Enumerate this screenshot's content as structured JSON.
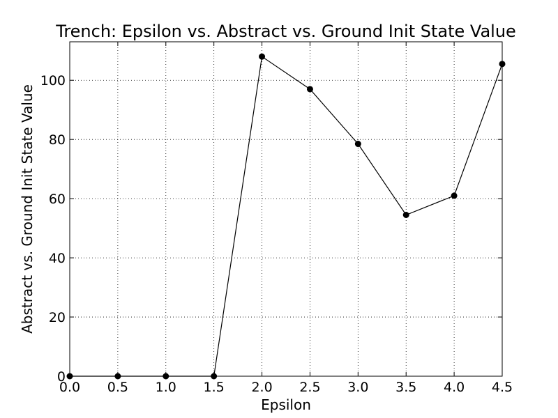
{
  "chart_data": {
    "type": "line",
    "title": "Trench: Epsilon vs. Abstract vs. Ground Init State Value",
    "xlabel": "Epsilon",
    "ylabel": "Abstract vs. Ground Init State Value",
    "xlim": [
      0.0,
      4.5
    ],
    "ylim": [
      0,
      113
    ],
    "xticks": [
      "0.0",
      "0.5",
      "1.0",
      "1.5",
      "2.0",
      "2.5",
      "3.0",
      "3.5",
      "4.0",
      "4.5"
    ],
    "yticks": [
      "0",
      "20",
      "40",
      "60",
      "80",
      "100"
    ],
    "grid": true,
    "legend": "none",
    "series": [
      {
        "x": [
          0.0,
          0.5,
          1.0,
          1.5,
          2.0,
          2.5,
          3.0,
          3.5,
          4.0,
          4.5
        ],
        "y": [
          0,
          0,
          0,
          0,
          108,
          97,
          78.5,
          54.5,
          61,
          105.5
        ],
        "color": "#000000",
        "marker": "circle"
      }
    ]
  }
}
